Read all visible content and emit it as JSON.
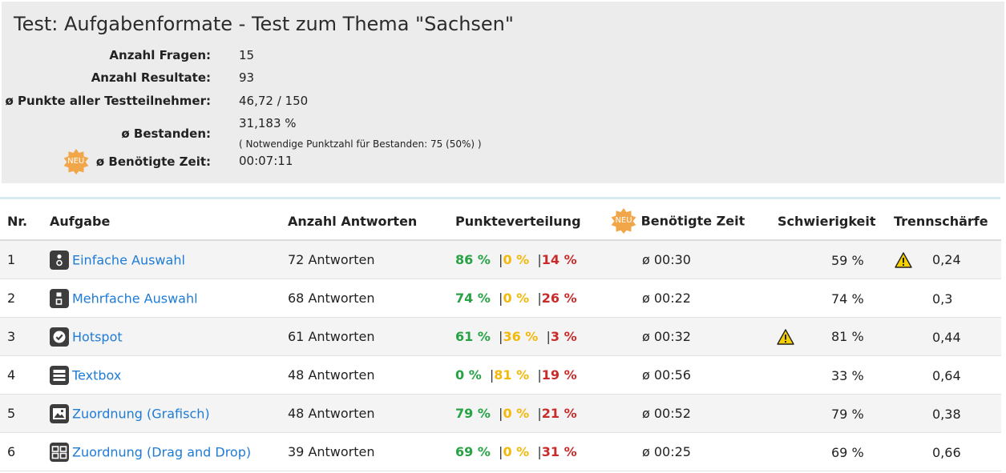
{
  "title": "Test: Aufgabenformate - Test zum Thema \"Sachsen\"",
  "summary": {
    "fragen_label": "Anzahl Fragen:",
    "fragen_value": "15",
    "resultate_label": "Anzahl Resultate:",
    "resultate_value": "93",
    "punkte_label": "ø Punkte aller Testteilnehmer:",
    "punkte_value": "46,72 / 150",
    "bestanden_label": "ø Bestanden:",
    "bestanden_value": "31,183 %",
    "bestanden_note": "( Notwendige Punktzahl für Bestanden: 75 (50%) )",
    "zeit_badge": "NEU",
    "zeit_label": "ø Benötigte Zeit:",
    "zeit_value": "00:07:11"
  },
  "table": {
    "headers": {
      "nr": "Nr.",
      "aufgabe": "Aufgabe",
      "antworten": "Anzahl Antworten",
      "punkte": "Punkteverteilung",
      "zeit_badge": "NEU",
      "zeit": "Benötigte Zeit",
      "schwierigkeit": "Schwierigkeit",
      "trennschaerfe": "Trennschärfe"
    },
    "rows": [
      {
        "nr": "1",
        "icon": "single-choice-icon",
        "aufgabe": "Einfache Auswahl",
        "antworten": "72 Antworten",
        "green": "86 %",
        "yellow": "0 %",
        "red": "14 %",
        "zeit": "ø  00:30",
        "schwierigkeit": "59 %",
        "trennschaerfe": "0,24",
        "warn_difficulty": false,
        "warn_discrimination": true
      },
      {
        "nr": "2",
        "icon": "multiple-choice-icon",
        "aufgabe": "Mehrfache Auswahl",
        "antworten": "68 Antworten",
        "green": "74 %",
        "yellow": "0 %",
        "red": "26 %",
        "zeit": "ø  00:22",
        "schwierigkeit": "74 %",
        "trennschaerfe": "0,3",
        "warn_difficulty": false,
        "warn_discrimination": false
      },
      {
        "nr": "3",
        "icon": "hotspot-icon",
        "aufgabe": "Hotspot",
        "antworten": "61 Antworten",
        "green": "61 %",
        "yellow": "36 %",
        "red": "3 %",
        "zeit": "ø  00:32",
        "schwierigkeit": "81 %",
        "trennschaerfe": "0,44",
        "warn_difficulty": true,
        "warn_discrimination": false
      },
      {
        "nr": "4",
        "icon": "textbox-icon",
        "aufgabe": "Textbox",
        "antworten": "48 Antworten",
        "green": "0 %",
        "yellow": "81 %",
        "red": "19 %",
        "zeit": "ø  00:56",
        "schwierigkeit": "33 %",
        "trennschaerfe": "0,64",
        "warn_difficulty": false,
        "warn_discrimination": false
      },
      {
        "nr": "5",
        "icon": "image-mapping-icon",
        "aufgabe": "Zuordnung (Grafisch)",
        "antworten": "48 Antworten",
        "green": "79 %",
        "yellow": "0 %",
        "red": "21 %",
        "zeit": "ø  00:52",
        "schwierigkeit": "79 %",
        "trennschaerfe": "0,38",
        "warn_difficulty": false,
        "warn_discrimination": false
      },
      {
        "nr": "6",
        "icon": "drag-drop-icon",
        "aufgabe": "Zuordnung (Drag and Drop)",
        "antworten": "39 Antworten",
        "green": "69 %",
        "yellow": "0 %",
        "red": "31 %",
        "zeit": "ø  00:25",
        "schwierigkeit": "69 %",
        "trennschaerfe": "0,66",
        "warn_difficulty": false,
        "warn_discrimination": false
      }
    ]
  },
  "colors": {
    "green": "#27a244",
    "yellow": "#f2b90c",
    "red": "#c92a2a",
    "link": "#1e7bd6",
    "badge": "#f2a64a",
    "warning": "#f5d000"
  }
}
